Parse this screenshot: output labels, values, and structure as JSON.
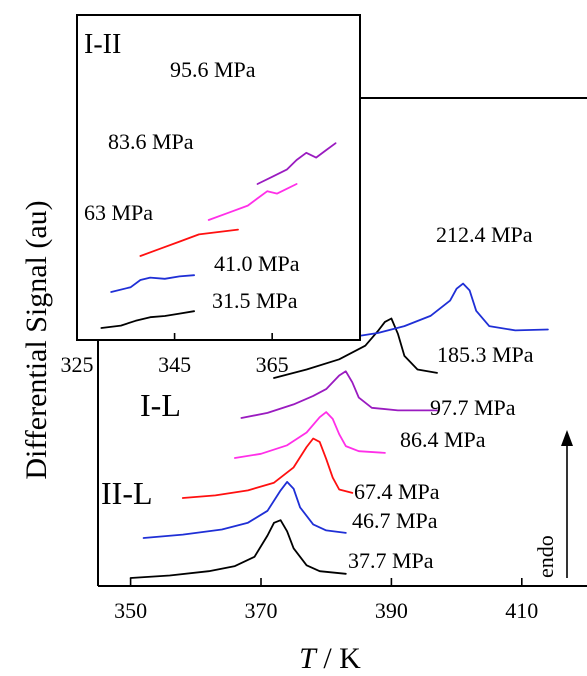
{
  "chart_data": [
    {
      "type": "line",
      "role": "main",
      "xlabel": "T / K",
      "xlabel_italic": "T",
      "xlabel_unit": " / K",
      "ylabel": "Differential Signal (au)",
      "x_range": [
        345,
        420
      ],
      "x_ticks": [
        350,
        370,
        390,
        410
      ],
      "y_ticks": [],
      "grid": false,
      "annotations": {
        "phase_labels": [
          "I-L",
          "II-L"
        ],
        "endo_label": "endo",
        "endo_arrow": "up"
      },
      "series": [
        {
          "name": "37.7 MPa",
          "label": "37.7 MPa",
          "color": "#000000",
          "offset": 0,
          "x": [
            350,
            356,
            362,
            366,
            369,
            371,
            372,
            373,
            374,
            375,
            377,
            379,
            383
          ],
          "y": [
            0,
            0.3,
            0.8,
            1.4,
            2.5,
            5.0,
            6.5,
            6.8,
            5.5,
            3.5,
            1.5,
            0.8,
            0.5
          ]
        },
        {
          "name": "46.7 MPa",
          "label": "46.7 MPa",
          "color": "#1f2fd6",
          "offset": 1,
          "x": [
            352,
            358,
            364,
            368,
            371,
            373,
            374,
            375,
            376,
            378,
            380,
            383
          ],
          "y": [
            0,
            0.4,
            1.0,
            1.8,
            3.2,
            5.6,
            6.6,
            5.8,
            3.6,
            1.6,
            0.9,
            0.6
          ]
        },
        {
          "name": "67.4 MPa",
          "label": "67.4 MPa",
          "color": "#ff1010",
          "offset": 2,
          "x": [
            358,
            363,
            368,
            372,
            375,
            377,
            378,
            379,
            380,
            381,
            382,
            384
          ],
          "y": [
            0,
            0.3,
            0.9,
            1.8,
            3.6,
            6.0,
            7.0,
            6.6,
            4.6,
            2.4,
            1.0,
            0.6
          ]
        },
        {
          "name": "86.4 MPa",
          "label": "86.4 MPa",
          "color": "#ff2fe8",
          "offset": 3,
          "x": [
            366,
            370,
            374,
            377,
            379,
            380,
            381,
            382,
            383,
            385,
            389
          ],
          "y": [
            0,
            0.5,
            1.5,
            3.0,
            4.8,
            5.4,
            4.6,
            2.8,
            1.4,
            0.8,
            0.6
          ]
        },
        {
          "name": "97.7 MPa",
          "label": "97.7 MPa",
          "color": "#9a1bc0",
          "offset": 4,
          "x": [
            367,
            371,
            375,
            378,
            380,
            382,
            383,
            384,
            385,
            387,
            391,
            397
          ],
          "y": [
            0,
            0.6,
            1.6,
            2.6,
            3.4,
            5.0,
            5.5,
            4.2,
            2.4,
            1.2,
            0.9,
            0.9
          ]
        },
        {
          "name": "185.3 MPa",
          "label": "185.3 MPa",
          "color": "#000000",
          "offset": 5,
          "x": [
            372,
            377,
            382,
            386,
            388,
            389,
            390,
            391,
            392,
            394,
            397
          ],
          "y": [
            0,
            1.0,
            2.2,
            3.8,
            5.6,
            6.6,
            7.0,
            5.2,
            2.6,
            1.0,
            0.6
          ]
        },
        {
          "name": "212.4 MPa",
          "label": "212.4 MPa",
          "color": "#1f2fd6",
          "offset": 6,
          "x": [
            383,
            388,
            392,
            396,
            399,
            400,
            401,
            402,
            403,
            405,
            409,
            414
          ],
          "y": [
            0,
            0.6,
            1.4,
            2.6,
            4.4,
            5.8,
            6.4,
            5.6,
            3.2,
            1.4,
            0.9,
            1.0
          ]
        }
      ]
    },
    {
      "type": "line",
      "role": "inset",
      "title": "I-II",
      "x_range": [
        325,
        380
      ],
      "x_ticks": [
        325,
        345,
        365
      ],
      "grid": false,
      "series": [
        {
          "name": "31.5 MPa",
          "label": "31.5 MPa",
          "color": "#000000",
          "offset": 0,
          "x": [
            330,
            334,
            337,
            340,
            343,
            346,
            349
          ],
          "y": [
            0,
            0.2,
            0.6,
            0.9,
            1.0,
            1.2,
            1.4
          ]
        },
        {
          "name": "41.0 MPa",
          "label": "41.0 MPa",
          "color": "#1f2fd6",
          "offset": 1,
          "x": [
            332,
            336,
            338,
            340,
            343,
            346,
            349
          ],
          "y": [
            0,
            0.4,
            1.0,
            1.2,
            1.1,
            1.3,
            1.4
          ]
        },
        {
          "name": "63 MPa",
          "label": "63 MPa",
          "color": "#ff1010",
          "offset": 2,
          "x": [
            338,
            342,
            346,
            348,
            350,
            354,
            358
          ],
          "y": [
            0,
            0.6,
            1.2,
            1.5,
            1.8,
            2.0,
            2.2
          ]
        },
        {
          "name": "83.6 MPa",
          "label": "83.6 MPa",
          "color": "#ff2fe8",
          "offset": 3,
          "x": [
            352,
            356,
            360,
            362,
            364,
            366,
            368,
            370
          ],
          "y": [
            0,
            0.6,
            1.2,
            1.8,
            2.4,
            2.2,
            2.6,
            3.0
          ]
        },
        {
          "name": "95.6 MPa",
          "label": "95.6 MPa",
          "color": "#9a1bc0",
          "offset": 4,
          "x": [
            362,
            365,
            368,
            370,
            372,
            374,
            376,
            378
          ],
          "y": [
            0,
            0.6,
            1.2,
            2.0,
            2.6,
            2.2,
            2.8,
            3.4
          ]
        }
      ]
    }
  ]
}
